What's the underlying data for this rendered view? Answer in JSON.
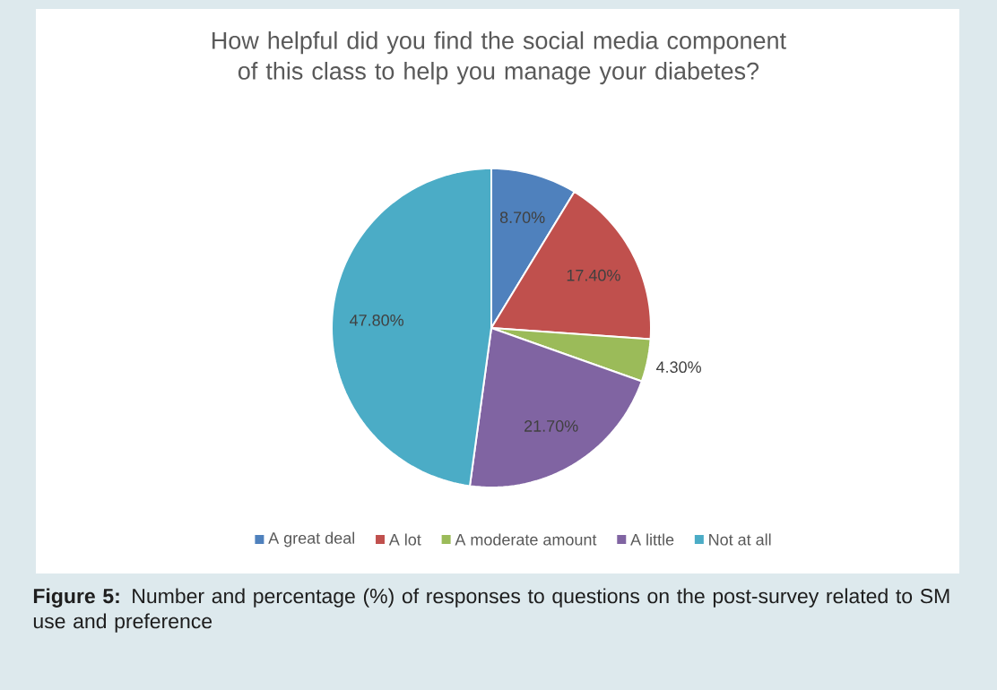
{
  "chart_data": {
    "type": "pie",
    "title": "How helpful did you find the social media component of this class to help you manage your diabetes?",
    "categories": [
      "A great deal",
      "A lot",
      "A moderate amount",
      "A little",
      "Not at all"
    ],
    "values": [
      8.7,
      17.4,
      4.3,
      21.7,
      47.8
    ],
    "colors": [
      "#4f81bd",
      "#c0504d",
      "#9bbb59",
      "#8064a2",
      "#4bacc6"
    ],
    "value_labels": [
      "8.70%",
      "17.40%",
      "4.30%",
      "21.70%",
      "47.80%"
    ],
    "legend": "bottom",
    "annotations": [
      "**Figure 5:** Number and percentage (%) of responses to questions on the post-survey related to SM use and preference"
    ]
  }
}
